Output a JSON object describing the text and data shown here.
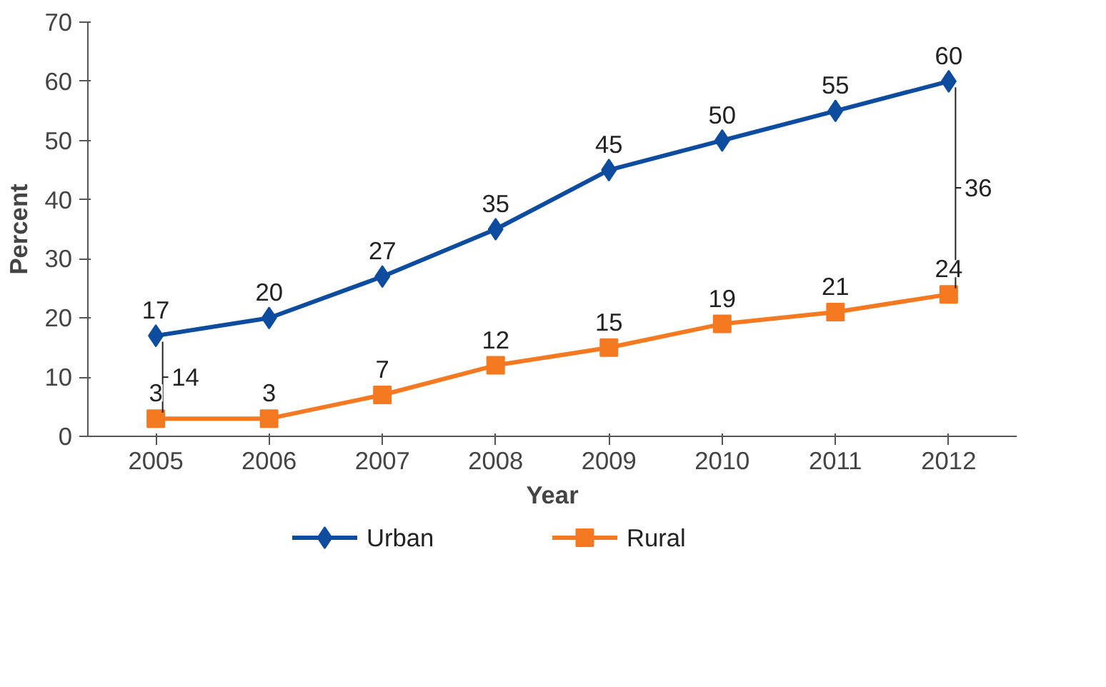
{
  "chart_data": {
    "type": "line",
    "xlabel": "Year",
    "ylabel": "Percent",
    "categories": [
      "2005",
      "2006",
      "2007",
      "2008",
      "2009",
      "2010",
      "2011",
      "2012"
    ],
    "series": [
      {
        "name": "Urban",
        "color": "#0d4c9e",
        "marker": "diamond",
        "values": [
          17,
          20,
          27,
          35,
          45,
          50,
          55,
          60
        ]
      },
      {
        "name": "Rural",
        "color": "#f47920",
        "marker": "square",
        "values": [
          3,
          3,
          7,
          12,
          15,
          19,
          21,
          24
        ]
      }
    ],
    "ylim": [
      0,
      70
    ],
    "yticks": [
      0,
      10,
      20,
      30,
      40,
      50,
      60,
      70
    ],
    "grid": false,
    "legend": "bottom",
    "data_labels": true,
    "annotations": [
      "14",
      "36"
    ]
  }
}
